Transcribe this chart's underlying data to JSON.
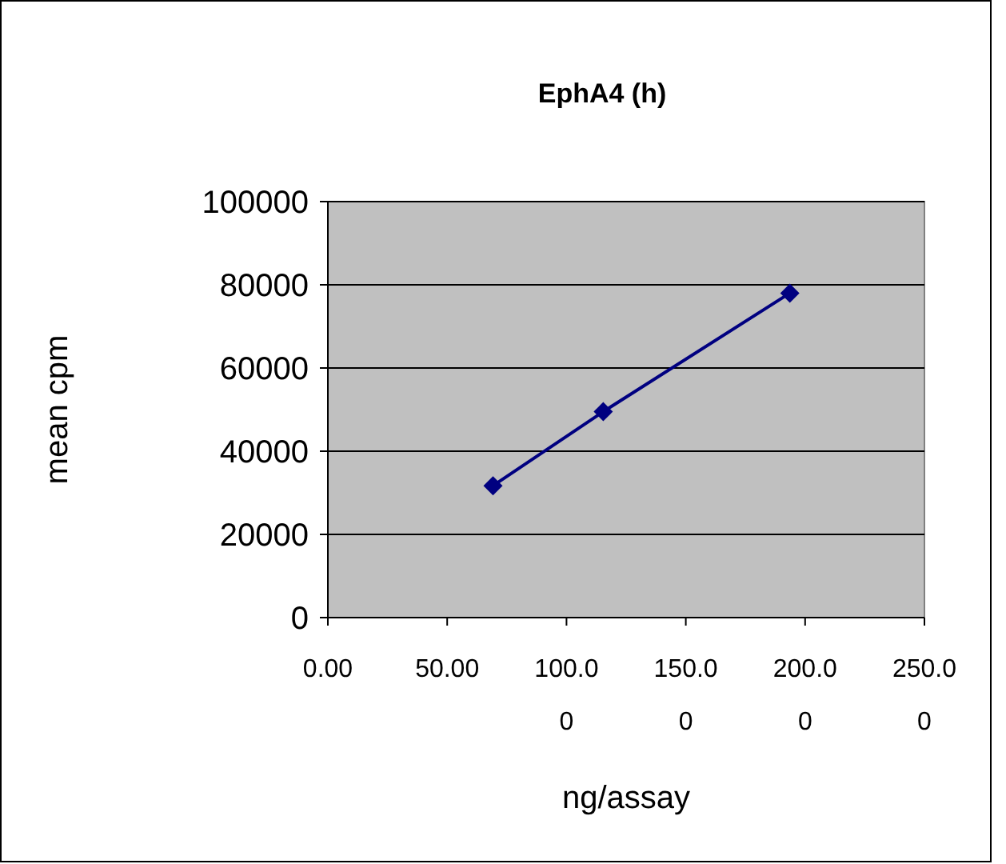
{
  "chart_data": {
    "type": "line",
    "title": "EphA4 (h)",
    "xlabel": "ng/assay",
    "ylabel": "mean cpm",
    "x": [
      69.2,
      115.4,
      193.6
    ],
    "series": [
      {
        "color": "#000080",
        "values": [
          31700,
          49500,
          78000
        ]
      }
    ],
    "xlim": [
      0,
      250
    ],
    "xticks": [
      {
        "value": 0,
        "label": "0.00"
      },
      {
        "value": 50,
        "label": "50.00"
      },
      {
        "value": 100,
        "label": "100.00"
      },
      {
        "value": 150,
        "label": "150.00"
      },
      {
        "value": 200,
        "label": "200.00"
      },
      {
        "value": 250,
        "label": "250.00"
      }
    ],
    "ylim": [
      0,
      100000
    ],
    "yticks": [
      0,
      20000,
      40000,
      60000,
      80000,
      100000
    ],
    "grid": "y",
    "marker": "diamond",
    "line_style": "solid"
  }
}
